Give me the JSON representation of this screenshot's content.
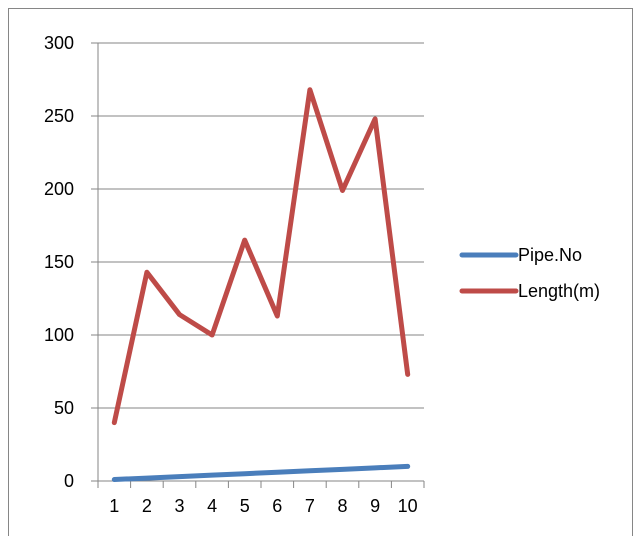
{
  "chart_data": {
    "type": "line",
    "title": "",
    "xlabel": "",
    "ylabel": "",
    "categories": [
      "1",
      "2",
      "3",
      "4",
      "5",
      "6",
      "7",
      "8",
      "9",
      "10"
    ],
    "ylim": [
      0,
      300
    ],
    "yticks": [
      0,
      50,
      100,
      150,
      200,
      250,
      300
    ],
    "grid": "horizontal",
    "legend_position": "right",
    "series": [
      {
        "name": "Pipe.No",
        "color": "#4a7ebb",
        "values": [
          1,
          2,
          3,
          4,
          5,
          6,
          7,
          8,
          9,
          10
        ]
      },
      {
        "name": "Length(m)",
        "color": "#be4b48",
        "values": [
          40,
          143,
          114,
          100,
          165,
          113,
          268,
          199,
          248,
          73
        ]
      }
    ]
  }
}
